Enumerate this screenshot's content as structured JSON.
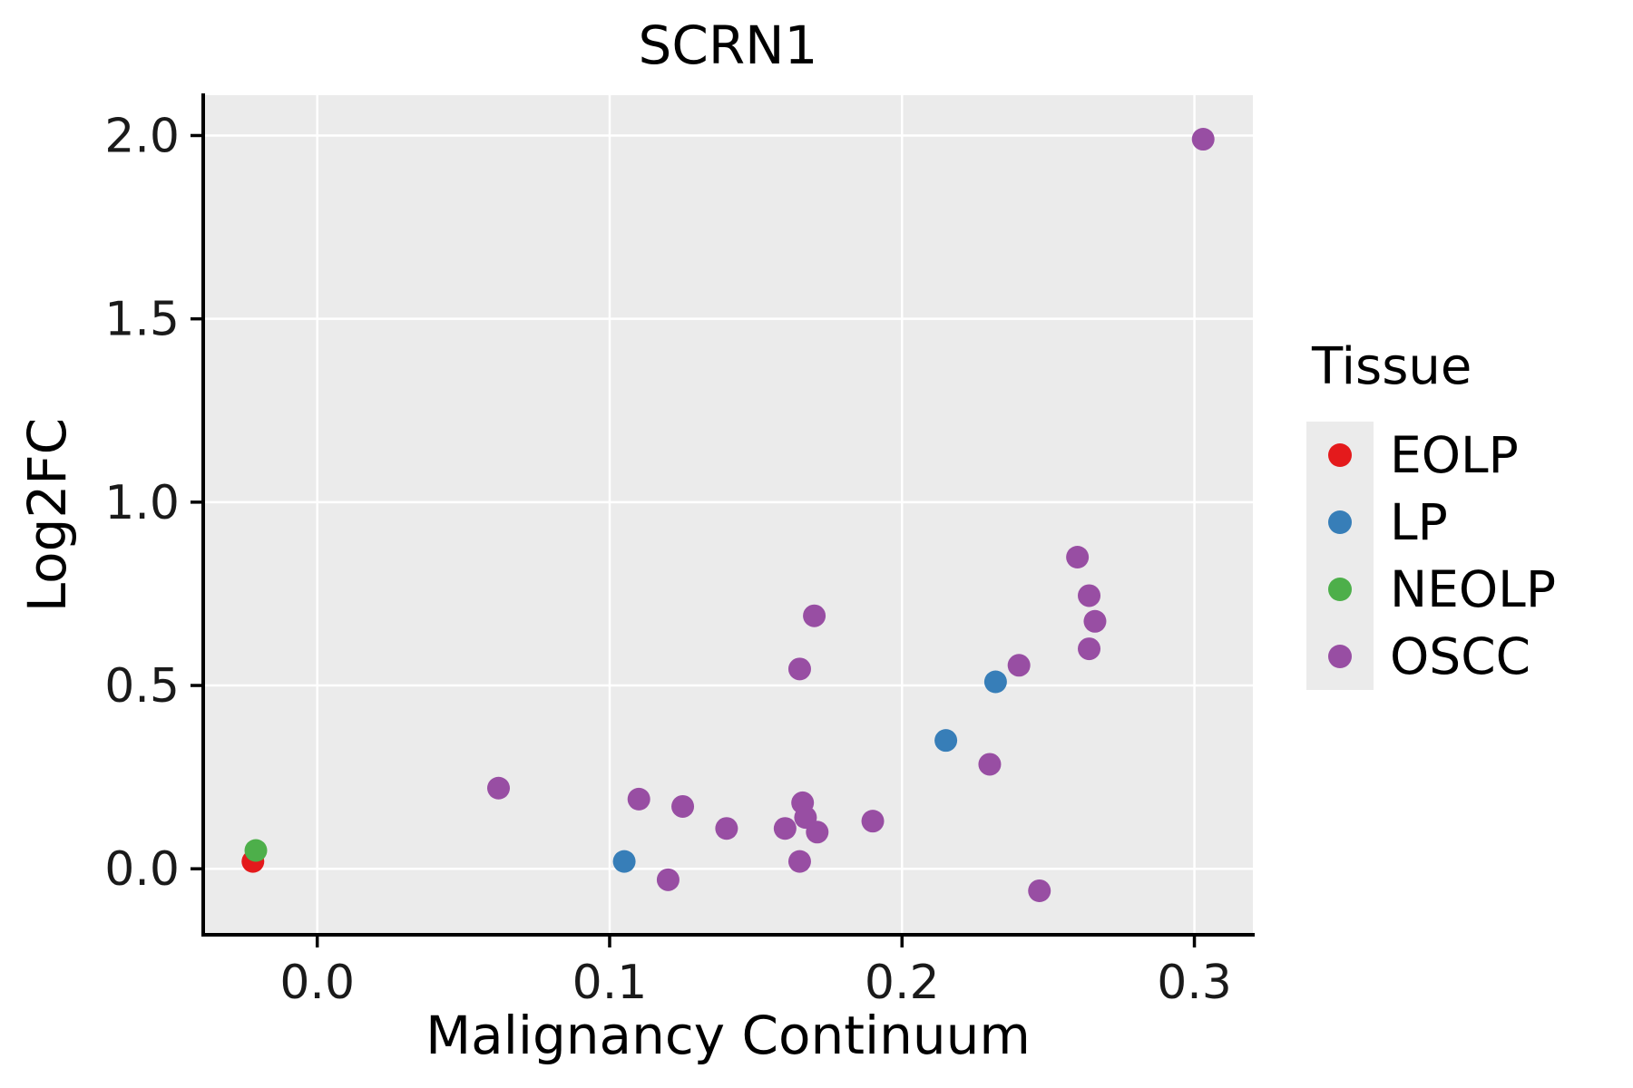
{
  "chart_data": {
    "type": "scatter",
    "title": "SCRN1",
    "xlabel": "Malignancy Continuum",
    "ylabel": "Log2FC",
    "legend_title": "Tissue",
    "legend_position": "right",
    "grid": true,
    "panel_bg": "#EBEBEB",
    "grid_color": "#FFFFFF",
    "axis_color": "#000000",
    "xlim": [
      -0.039,
      0.32
    ],
    "ylim": [
      -0.18,
      2.11
    ],
    "xticks": [
      0.0,
      0.1,
      0.2,
      0.3
    ],
    "xtick_labels": [
      "0.0",
      "0.1",
      "0.2",
      "0.3"
    ],
    "yticks": [
      0.0,
      0.5,
      1.0,
      1.5,
      2.0
    ],
    "ytick_labels": [
      "0.0",
      "0.5",
      "1.0",
      "1.5",
      "2.0"
    ],
    "series": [
      {
        "name": "EOLP",
        "color": "#E41A1C",
        "points": [
          [
            -0.022,
            0.02
          ]
        ]
      },
      {
        "name": "LP",
        "color": "#377EB8",
        "points": [
          [
            0.105,
            0.02
          ],
          [
            0.215,
            0.35
          ],
          [
            0.232,
            0.51
          ]
        ]
      },
      {
        "name": "NEOLP",
        "color": "#4DAF4A",
        "points": [
          [
            -0.021,
            0.05
          ]
        ]
      },
      {
        "name": "OSCC",
        "color": "#984EA3",
        "points": [
          [
            0.062,
            0.22
          ],
          [
            0.11,
            0.19
          ],
          [
            0.12,
            -0.03
          ],
          [
            0.125,
            0.17
          ],
          [
            0.14,
            0.11
          ],
          [
            0.16,
            0.11
          ],
          [
            0.165,
            0.02
          ],
          [
            0.166,
            0.18
          ],
          [
            0.167,
            0.14
          ],
          [
            0.171,
            0.1
          ],
          [
            0.17,
            0.69
          ],
          [
            0.165,
            0.545
          ],
          [
            0.19,
            0.13
          ],
          [
            0.23,
            0.285
          ],
          [
            0.24,
            0.555
          ],
          [
            0.247,
            -0.06
          ],
          [
            0.26,
            0.85
          ],
          [
            0.264,
            0.745
          ],
          [
            0.266,
            0.675
          ],
          [
            0.264,
            0.6
          ],
          [
            0.303,
            1.99
          ]
        ]
      }
    ]
  }
}
